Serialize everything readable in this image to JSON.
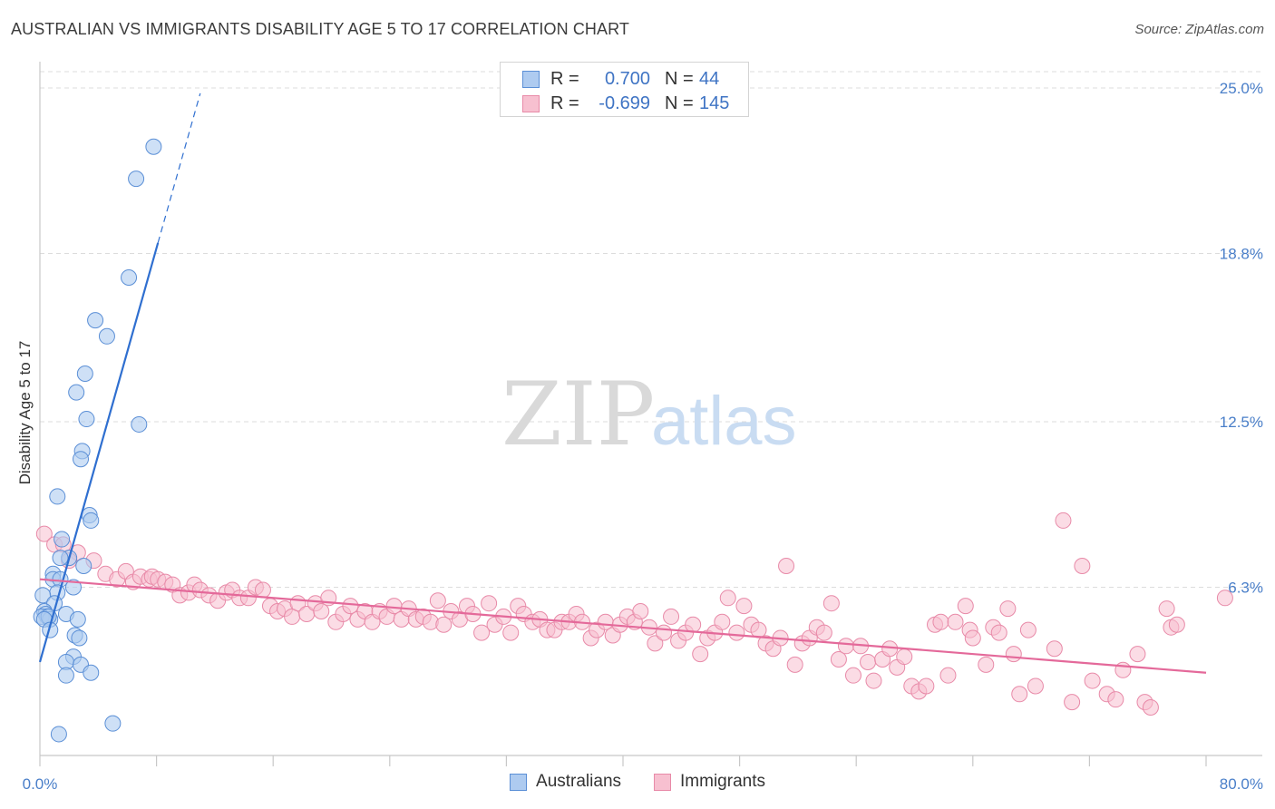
{
  "title": "AUSTRALIAN VS IMMIGRANTS DISABILITY AGE 5 TO 17 CORRELATION CHART",
  "source": "Source: ZipAtlas.com",
  "watermark": {
    "zip": "ZIP",
    "atlas": "atlas"
  },
  "colors": {
    "blue_fill": "#aecbf0",
    "blue_stroke": "#5b8fd6",
    "blue_line": "#2f6fd0",
    "pink_fill": "#f7c0d0",
    "pink_stroke": "#e88aa8",
    "pink_line": "#e4699a",
    "grid": "#dcdcdc",
    "label": "#4a7fc9"
  },
  "legend_top": [
    {
      "label_r": "R =",
      "r": "0.700",
      "label_n": "N =",
      "n": "44"
    },
    {
      "label_r": "R =",
      "r": "-0.699",
      "label_n": "N =",
      "n": "145"
    }
  ],
  "legend_bottom": [
    "Australians",
    "Immigrants"
  ],
  "chart_data": {
    "type": "scatter",
    "title": "AUSTRALIAN VS IMMIGRANTS DISABILITY AGE 5 TO 17 CORRELATION CHART",
    "xlabel": "",
    "ylabel": "Disability Age 5 to 17",
    "xlim": [
      0,
      80
    ],
    "ylim": [
      0,
      25
    ],
    "x_tick_labels": [
      "0.0%",
      "80.0%"
    ],
    "y_ticks": [
      6.3,
      12.5,
      18.8,
      25.0
    ],
    "y_tick_labels": [
      "6.3%",
      "12.5%",
      "18.8%",
      "25.0%"
    ],
    "grid": true,
    "series": [
      {
        "name": "Australians",
        "r": 0.7,
        "n": 44,
        "trend": {
          "x0": 0.0,
          "y0": 3.5,
          "x1": 8.1,
          "y1": 19.2,
          "dash_to_x": 11.0,
          "dash_to_y": 24.8
        },
        "points": [
          [
            7.8,
            22.8
          ],
          [
            6.6,
            21.6
          ],
          [
            6.1,
            17.9
          ],
          [
            3.8,
            16.3
          ],
          [
            4.6,
            15.7
          ],
          [
            3.1,
            14.3
          ],
          [
            2.5,
            13.6
          ],
          [
            3.2,
            12.6
          ],
          [
            6.8,
            12.4
          ],
          [
            2.9,
            11.4
          ],
          [
            2.8,
            11.1
          ],
          [
            1.2,
            9.7
          ],
          [
            3.4,
            9.0
          ],
          [
            3.5,
            8.8
          ],
          [
            1.5,
            8.1
          ],
          [
            2.0,
            7.4
          ],
          [
            1.4,
            7.4
          ],
          [
            3.0,
            7.1
          ],
          [
            0.9,
            6.8
          ],
          [
            0.9,
            6.6
          ],
          [
            1.4,
            6.6
          ],
          [
            2.3,
            6.3
          ],
          [
            1.2,
            6.1
          ],
          [
            0.2,
            6.0
          ],
          [
            1.0,
            5.7
          ],
          [
            0.3,
            5.4
          ],
          [
            0.4,
            5.3
          ],
          [
            0.5,
            5.2
          ],
          [
            0.1,
            5.2
          ],
          [
            0.7,
            5.1
          ],
          [
            0.6,
            5.2
          ],
          [
            0.3,
            5.1
          ],
          [
            1.8,
            5.3
          ],
          [
            2.6,
            5.1
          ],
          [
            0.7,
            4.7
          ],
          [
            2.4,
            4.5
          ],
          [
            2.7,
            4.4
          ],
          [
            2.3,
            3.7
          ],
          [
            1.8,
            3.5
          ],
          [
            2.8,
            3.4
          ],
          [
            1.8,
            3.0
          ],
          [
            3.5,
            3.1
          ],
          [
            5.0,
            1.2
          ],
          [
            1.3,
            0.8
          ]
        ]
      },
      {
        "name": "Immigrants",
        "r": -0.699,
        "n": 145,
        "trend": {
          "x0": 0.0,
          "y0": 6.6,
          "x1": 80.0,
          "y1": 3.1
        },
        "points": [
          [
            0.3,
            8.3
          ],
          [
            1.0,
            7.9
          ],
          [
            1.6,
            7.9
          ],
          [
            2.6,
            7.6
          ],
          [
            3.7,
            7.3
          ],
          [
            2.0,
            7.3
          ],
          [
            4.5,
            6.8
          ],
          [
            5.3,
            6.6
          ],
          [
            5.9,
            6.9
          ],
          [
            6.4,
            6.5
          ],
          [
            6.9,
            6.7
          ],
          [
            7.5,
            6.6
          ],
          [
            7.7,
            6.7
          ],
          [
            8.1,
            6.6
          ],
          [
            8.6,
            6.5
          ],
          [
            9.1,
            6.4
          ],
          [
            9.6,
            6.0
          ],
          [
            10.2,
            6.1
          ],
          [
            10.6,
            6.4
          ],
          [
            11.0,
            6.2
          ],
          [
            11.6,
            6.0
          ],
          [
            12.2,
            5.8
          ],
          [
            12.8,
            6.1
          ],
          [
            13.2,
            6.2
          ],
          [
            13.7,
            5.9
          ],
          [
            14.3,
            5.9
          ],
          [
            14.8,
            6.3
          ],
          [
            15.3,
            6.2
          ],
          [
            15.8,
            5.6
          ],
          [
            16.3,
            5.4
          ],
          [
            16.8,
            5.5
          ],
          [
            17.3,
            5.2
          ],
          [
            17.7,
            5.7
          ],
          [
            18.3,
            5.3
          ],
          [
            18.9,
            5.7
          ],
          [
            19.3,
            5.4
          ],
          [
            19.8,
            5.9
          ],
          [
            20.3,
            5.0
          ],
          [
            20.8,
            5.3
          ],
          [
            21.3,
            5.6
          ],
          [
            21.8,
            5.1
          ],
          [
            22.3,
            5.4
          ],
          [
            22.8,
            5.0
          ],
          [
            23.3,
            5.4
          ],
          [
            23.8,
            5.2
          ],
          [
            24.3,
            5.6
          ],
          [
            24.8,
            5.1
          ],
          [
            25.3,
            5.5
          ],
          [
            25.8,
            5.1
          ],
          [
            26.3,
            5.2
          ],
          [
            26.8,
            5.0
          ],
          [
            27.3,
            5.8
          ],
          [
            27.7,
            4.9
          ],
          [
            28.2,
            5.4
          ],
          [
            28.8,
            5.1
          ],
          [
            29.3,
            5.6
          ],
          [
            29.7,
            5.3
          ],
          [
            30.3,
            4.6
          ],
          [
            30.8,
            5.7
          ],
          [
            31.2,
            4.9
          ],
          [
            31.8,
            5.2
          ],
          [
            32.3,
            4.6
          ],
          [
            32.8,
            5.6
          ],
          [
            33.2,
            5.3
          ],
          [
            33.8,
            5.0
          ],
          [
            34.3,
            5.1
          ],
          [
            34.8,
            4.7
          ],
          [
            35.3,
            4.7
          ],
          [
            35.8,
            5.0
          ],
          [
            36.3,
            5.0
          ],
          [
            36.8,
            5.3
          ],
          [
            37.2,
            5.0
          ],
          [
            37.8,
            4.4
          ],
          [
            38.2,
            4.7
          ],
          [
            38.8,
            5.0
          ],
          [
            39.3,
            4.5
          ],
          [
            39.8,
            4.9
          ],
          [
            40.3,
            5.2
          ],
          [
            40.8,
            5.0
          ],
          [
            41.2,
            5.4
          ],
          [
            41.8,
            4.8
          ],
          [
            42.2,
            4.2
          ],
          [
            42.8,
            4.6
          ],
          [
            43.3,
            5.2
          ],
          [
            43.8,
            4.3
          ],
          [
            44.3,
            4.6
          ],
          [
            44.8,
            4.9
          ],
          [
            45.3,
            3.8
          ],
          [
            45.8,
            4.4
          ],
          [
            46.3,
            4.6
          ],
          [
            46.8,
            5.0
          ],
          [
            47.2,
            5.9
          ],
          [
            47.8,
            4.6
          ],
          [
            48.3,
            5.6
          ],
          [
            48.8,
            4.9
          ],
          [
            49.3,
            4.7
          ],
          [
            49.8,
            4.2
          ],
          [
            50.3,
            4.0
          ],
          [
            50.8,
            4.4
          ],
          [
            51.2,
            7.1
          ],
          [
            51.8,
            3.4
          ],
          [
            52.3,
            4.2
          ],
          [
            52.8,
            4.4
          ],
          [
            53.3,
            4.8
          ],
          [
            53.8,
            4.6
          ],
          [
            54.3,
            5.7
          ],
          [
            54.8,
            3.6
          ],
          [
            55.3,
            4.1
          ],
          [
            55.8,
            3.0
          ],
          [
            56.3,
            4.1
          ],
          [
            56.8,
            3.5
          ],
          [
            57.2,
            2.8
          ],
          [
            57.8,
            3.6
          ],
          [
            58.3,
            4.0
          ],
          [
            58.8,
            3.3
          ],
          [
            59.3,
            3.7
          ],
          [
            59.8,
            2.6
          ],
          [
            60.3,
            2.4
          ],
          [
            60.8,
            2.6
          ],
          [
            61.4,
            4.9
          ],
          [
            61.8,
            5.0
          ],
          [
            62.3,
            3.0
          ],
          [
            62.8,
            5.0
          ],
          [
            63.5,
            5.6
          ],
          [
            63.8,
            4.7
          ],
          [
            64.0,
            4.4
          ],
          [
            64.9,
            3.4
          ],
          [
            65.4,
            4.8
          ],
          [
            65.8,
            4.6
          ],
          [
            66.4,
            5.5
          ],
          [
            66.8,
            3.8
          ],
          [
            67.2,
            2.3
          ],
          [
            67.8,
            4.7
          ],
          [
            68.3,
            2.6
          ],
          [
            70.2,
            8.8
          ],
          [
            69.6,
            4.0
          ],
          [
            70.8,
            2.0
          ],
          [
            72.2,
            2.8
          ],
          [
            73.2,
            2.3
          ],
          [
            73.8,
            2.1
          ],
          [
            74.3,
            3.2
          ],
          [
            71.5,
            7.1
          ],
          [
            75.3,
            3.8
          ],
          [
            75.8,
            2.0
          ],
          [
            77.3,
            5.5
          ],
          [
            77.6,
            4.8
          ],
          [
            78.0,
            4.9
          ],
          [
            76.2,
            1.8
          ],
          [
            81.3,
            5.9
          ]
        ]
      }
    ]
  }
}
